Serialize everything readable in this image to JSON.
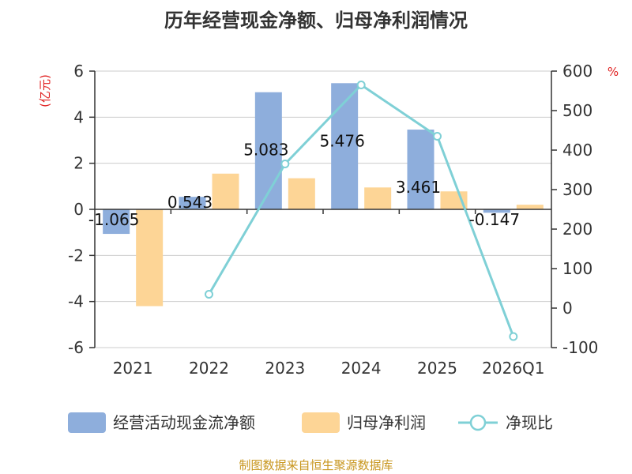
{
  "chart_data": {
    "type": "bar+line",
    "title": "历年经营现金净额、归母净利润情况",
    "categories": [
      "2021",
      "2022",
      "2023",
      "2024",
      "2025",
      "2026Q1"
    ],
    "series": [
      {
        "name": "经营活动现金流净额",
        "type": "bar",
        "axis": "left",
        "values": [
          -1.065,
          0.543,
          5.083,
          5.476,
          3.461,
          -0.147
        ],
        "labels": [
          "-1.065",
          "0.543",
          "5.083",
          "5.476",
          "3.461",
          "-0.147"
        ]
      },
      {
        "name": "归母净利润",
        "type": "bar",
        "axis": "left",
        "values": [
          -4.2,
          1.55,
          1.35,
          0.95,
          0.78,
          0.2
        ]
      },
      {
        "name": "净现比",
        "type": "line",
        "axis": "right",
        "values": [
          null,
          35,
          365,
          565,
          435,
          -72
        ]
      }
    ],
    "left_axis": {
      "unit": "(亿元)",
      "min": -6,
      "max": 6,
      "ticks": [
        "6",
        "4",
        "2",
        "0",
        "-2",
        "-4",
        "-6"
      ]
    },
    "right_axis": {
      "unit": "%",
      "min": -100,
      "max": 600,
      "ticks": [
        "600",
        "500",
        "400",
        "300",
        "200",
        "100",
        "0",
        "-100"
      ]
    },
    "colors": {
      "cash": "#8eaedc",
      "profit": "#fdd596",
      "ratio": "#7fd0d6",
      "unit": "#e02020",
      "source": "#c8961e",
      "grid": "#cccccc",
      "axis": "#333333"
    },
    "source": "制图数据来自恒生聚源数据库"
  }
}
